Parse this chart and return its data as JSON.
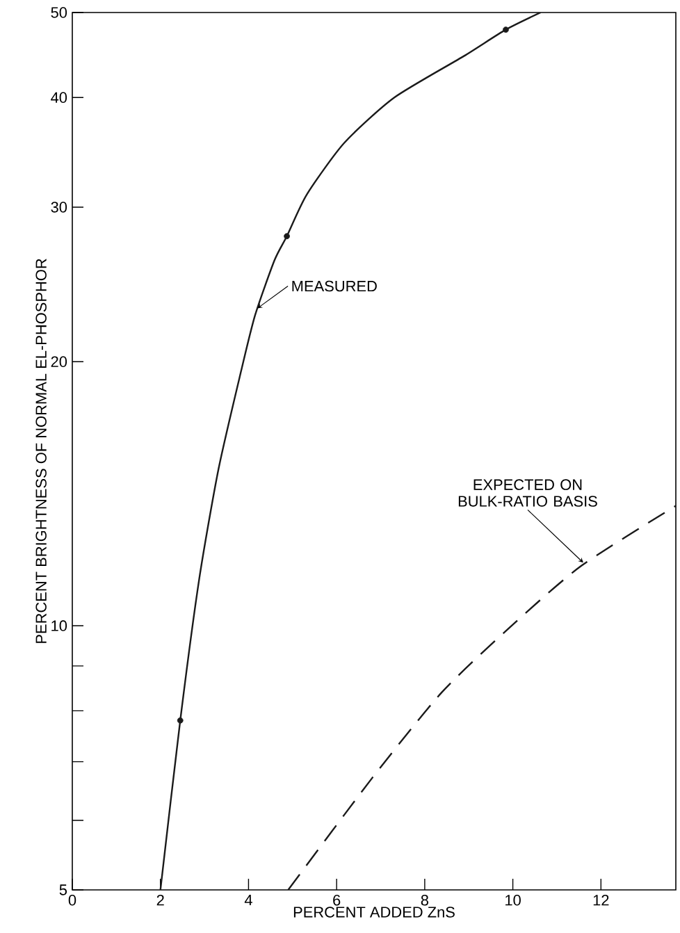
{
  "chart_data": {
    "type": "line",
    "xlabel": "PERCENT ADDED ZnS",
    "ylabel": "PERCENT BRIGHTNESS OF NORMAL EL-PHOSPHOR",
    "log": "y",
    "xlim": [
      0,
      13.7
    ],
    "ylim": [
      5,
      50
    ],
    "xticks": [
      0,
      2,
      4,
      6,
      8,
      10,
      12
    ],
    "yticks": [
      5,
      {
        "value": 6,
        "label": null
      },
      {
        "value": 7,
        "label": null
      },
      {
        "value": 8,
        "label": null
      },
      {
        "value": 9,
        "label": null
      },
      10,
      20,
      30,
      40,
      50
    ],
    "series": [
      {
        "color": "#1a1a1a",
        "line_style": "solid",
        "marker": "none",
        "x": [
          2.0,
          2.45,
          2.88,
          3.32,
          3.83,
          4.15,
          4.59,
          4.87,
          5.32,
          6.17,
          7.31,
          8.89,
          9.84,
          10.63
        ],
        "values": [
          5,
          7.8,
          11.3,
          15.1,
          19.5,
          22.6,
          26.1,
          27.8,
          31.0,
          35.5,
          40.0,
          44.6,
          47.8,
          50
        ]
      },
      {
        "type": "scatter",
        "color": "#1a1a1a",
        "marker": "circle",
        "x": [
          2.45,
          4.87,
          9.84
        ],
        "values": [
          7.8,
          27.8,
          47.8
        ]
      },
      {
        "color": "#1a1a1a",
        "line_style": "dashed",
        "marker": "none",
        "x": [
          4.9,
          6.8,
          8.39,
          9.97,
          11.55,
          13.7
        ],
        "values": [
          5,
          6.7,
          8.4,
          10,
          11.7,
          13.7
        ]
      }
    ],
    "annotations": [
      {
        "text": "MEASURED",
        "x": 4.2,
        "y": 23
      },
      {
        "text": "EXPECTED ON BULK-RATIO BASIS",
        "x": 11.6,
        "y": 11.8
      }
    ]
  }
}
